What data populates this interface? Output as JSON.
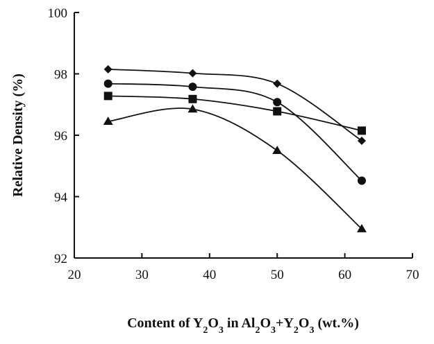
{
  "chart_data": {
    "type": "line",
    "title": "",
    "xlabel": {
      "parts": [
        {
          "t": "Content of Y",
          "s": ""
        },
        {
          "t": "2",
          "s": "sub"
        },
        {
          "t": "O",
          "s": ""
        },
        {
          "t": "3",
          "s": "sub"
        },
        {
          "t": " in Al",
          "s": ""
        },
        {
          "t": "2",
          "s": "sub"
        },
        {
          "t": "O",
          "s": ""
        },
        {
          "t": "3",
          "s": "sub"
        },
        {
          "t": "+Y",
          "s": ""
        },
        {
          "t": "2",
          "s": "sub"
        },
        {
          "t": "O",
          "s": ""
        },
        {
          "t": "3",
          "s": "sub"
        },
        {
          "t": " (wt.%)",
          "s": ""
        }
      ]
    },
    "ylabel": "Relative Density (%)",
    "xlim": [
      20,
      70
    ],
    "ylim": [
      92,
      100
    ],
    "xticks": [
      "20",
      "30",
      "40",
      "50",
      "60",
      "70"
    ],
    "yticks": [
      "92",
      "94",
      "96",
      "98",
      "100"
    ],
    "grid": false,
    "series": [
      {
        "marker": "diamond",
        "x": [
          25,
          37.5,
          50,
          62.5
        ],
        "y": [
          98.15,
          98.02,
          97.68,
          95.82
        ]
      },
      {
        "marker": "circle",
        "x": [
          25,
          37.5,
          50,
          62.5
        ],
        "y": [
          97.68,
          97.58,
          97.08,
          94.52
        ]
      },
      {
        "marker": "square",
        "x": [
          25,
          37.5,
          50,
          62.5
        ],
        "y": [
          97.28,
          97.18,
          96.78,
          96.15
        ]
      },
      {
        "marker": "triangle",
        "x": [
          25,
          37.5,
          50,
          62.5
        ],
        "y": [
          96.45,
          96.85,
          95.5,
          92.95
        ]
      }
    ]
  }
}
